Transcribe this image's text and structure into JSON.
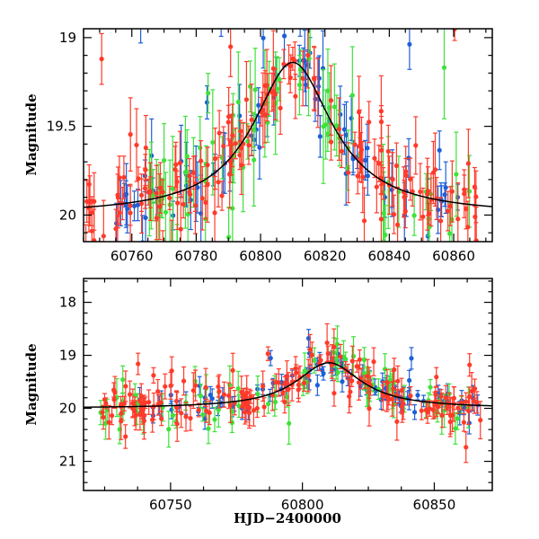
{
  "colors": {
    "blue": "#1f5fd6",
    "green": "#3ee23a",
    "red": "#ff3a2a",
    "model": "#000000"
  },
  "chart_data": [
    {
      "type": "scatter",
      "title": "",
      "xlabel": "",
      "ylabel": "Magnitude",
      "xlim": [
        60745,
        60872
      ],
      "ylim": [
        20.15,
        18.95
      ],
      "y_inverted": true,
      "x_ticks": [
        60760,
        60780,
        60800,
        60820,
        60840,
        60860
      ],
      "y_ticks": [
        19,
        19.5,
        20
      ],
      "y_tick_labels": [
        "19",
        "19.5",
        "20"
      ],
      "model": {
        "baseline": 20.0,
        "peak_mag": 19.14,
        "t0": 60810,
        "tau": 15
      },
      "series": [
        {
          "color": "blue",
          "x_range": [
            60755,
            60865
          ],
          "mean_err": 0.12
        },
        {
          "color": "green",
          "x_range": [
            60765,
            60866
          ],
          "mean_err": 0.18
        },
        {
          "color": "red",
          "x_range": [
            60745,
            60868
          ],
          "mean_err": 0.12
        }
      ]
    },
    {
      "type": "scatter",
      "title": "",
      "xlabel": "HJD−2400000",
      "ylabel": "Magnitude",
      "xlim": [
        60717,
        60872
      ],
      "ylim": [
        21.55,
        17.55
      ],
      "y_inverted": true,
      "x_ticks": [
        60750,
        60800,
        60850
      ],
      "y_ticks": [
        18,
        19,
        20,
        21
      ],
      "y_tick_labels": [
        "18",
        "19",
        "20",
        "21"
      ],
      "model": {
        "baseline": 20.0,
        "peak_mag": 19.14,
        "t0": 60810,
        "tau": 15
      },
      "series": [
        {
          "color": "blue",
          "x_range": [
            60738,
            60867
          ],
          "mean_err": 0.14
        },
        {
          "color": "green",
          "x_range": [
            60723,
            60866
          ],
          "mean_err": 0.22
        },
        {
          "color": "red",
          "x_range": [
            60724,
            60868
          ],
          "mean_err": 0.2
        }
      ]
    }
  ]
}
